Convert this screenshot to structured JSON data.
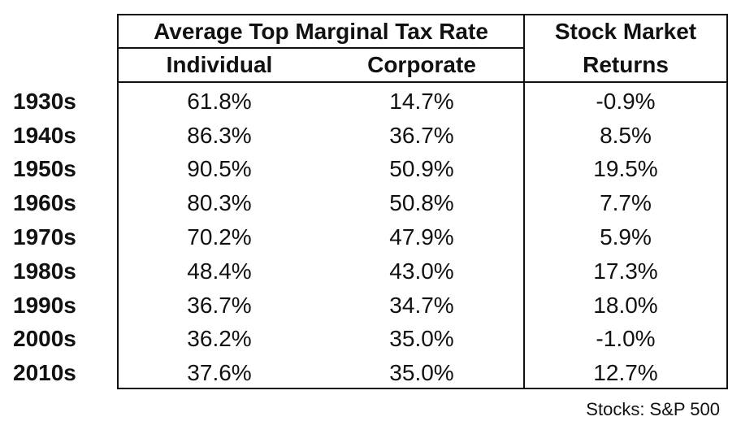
{
  "chart_data": {
    "type": "table",
    "header_group": "Average Top Marginal Tax Rate",
    "header_right": [
      "Stock Market",
      "Returns"
    ],
    "subheaders": [
      "Individual",
      "Corporate"
    ],
    "rows": [
      {
        "label": "1930s",
        "values": [
          "61.8%",
          "14.7%",
          "-0.9%"
        ]
      },
      {
        "label": "1940s",
        "values": [
          "86.3%",
          "36.7%",
          "8.5%"
        ]
      },
      {
        "label": "1950s",
        "values": [
          "90.5%",
          "50.9%",
          "19.5%"
        ]
      },
      {
        "label": "1960s",
        "values": [
          "80.3%",
          "50.8%",
          "7.7%"
        ]
      },
      {
        "label": "1970s",
        "values": [
          "70.2%",
          "47.9%",
          "5.9%"
        ]
      },
      {
        "label": "1980s",
        "values": [
          "48.4%",
          "43.0%",
          "17.3%"
        ]
      },
      {
        "label": "1990s",
        "values": [
          "36.7%",
          "34.7%",
          "18.0%"
        ]
      },
      {
        "label": "2000s",
        "values": [
          "36.2%",
          "35.0%",
          "-1.0%"
        ]
      },
      {
        "label": "2010s",
        "values": [
          "37.6%",
          "35.0%",
          "12.7%"
        ]
      }
    ],
    "footnote": "Stocks: S&P 500"
  }
}
